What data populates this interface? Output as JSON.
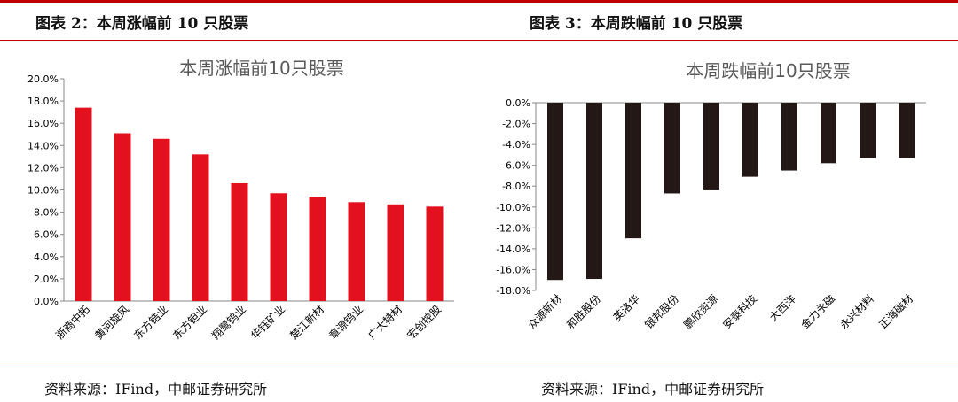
{
  "left_figure": {
    "header": "图表 2：本周涨幅前 10 只股票",
    "source": "资料来源：IFind，中邮证券研究所"
  },
  "right_figure": {
    "header": "图表 3：本周跌幅前 10 只股票",
    "source": "资料来源：IFind，中邮证券研究所"
  },
  "colors": {
    "rule": "#c00000",
    "up_bar": "#e3101e",
    "down_bar": "#231815"
  },
  "chart_data": [
    {
      "type": "bar",
      "title": "本周涨幅前10只股票",
      "categories": [
        "浙商中拓",
        "黄河旋风",
        "东方锆业",
        "东方钽业",
        "翔鹭钨业",
        "华钰矿业",
        "楚江新材",
        "章源钨业",
        "广大特材",
        "宏创控股"
      ],
      "values": [
        17.4,
        15.1,
        14.6,
        13.2,
        10.6,
        9.7,
        9.4,
        8.9,
        8.7,
        8.5
      ],
      "ylim": [
        0,
        20
      ],
      "yticks": [
        "0.0%",
        "2.0%",
        "4.0%",
        "6.0%",
        "8.0%",
        "10.0%",
        "12.0%",
        "14.0%",
        "16.0%",
        "18.0%",
        "20.0%"
      ],
      "grid": false,
      "color": "#e3101e"
    },
    {
      "type": "bar",
      "title": "本周跌幅前10只股票",
      "categories": [
        "众源新材",
        "和胜股份",
        "英洛华",
        "银邦股份",
        "鹏欣资源",
        "安泰科技",
        "大西洋",
        "金力永磁",
        "永兴材料",
        "正海磁材"
      ],
      "values": [
        -17.0,
        -16.9,
        -13.0,
        -8.7,
        -8.4,
        -7.1,
        -6.5,
        -5.8,
        -5.3,
        -5.3
      ],
      "ylim": [
        -18,
        0
      ],
      "yticks": [
        "0.0%",
        "-2.0%",
        "-4.0%",
        "-6.0%",
        "-8.0%",
        "-10.0%",
        "-12.0%",
        "-14.0%",
        "-16.0%",
        "-18.0%"
      ],
      "grid": false,
      "color": "#231815"
    }
  ]
}
